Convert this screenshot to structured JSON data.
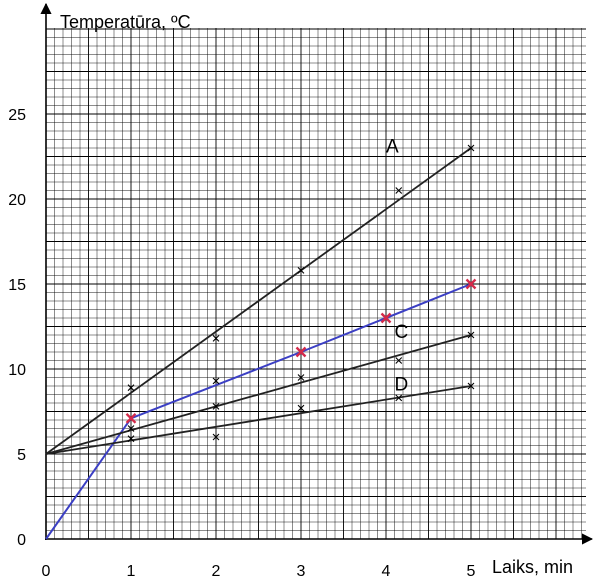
{
  "chart_data": {
    "type": "line",
    "ylabel": "Temperatūra, ºC",
    "xlabel": "Laiks, min",
    "xlim": [
      0,
      5
    ],
    "ylim": [
      0,
      30
    ],
    "x_ticks": [
      "0",
      "1",
      "2",
      "3",
      "4",
      "5"
    ],
    "y_ticks": [
      "0",
      "5",
      "10",
      "15",
      "20",
      "25"
    ],
    "grid": true,
    "series": [
      {
        "name": "A",
        "color": "#222222",
        "line": [
          [
            0,
            5
          ],
          [
            5,
            23
          ]
        ],
        "points": [
          [
            1,
            8.9
          ],
          [
            2,
            11.8
          ],
          [
            3,
            15.8
          ],
          [
            4.15,
            20.5
          ],
          [
            5,
            23
          ]
        ]
      },
      {
        "name": "",
        "color": "#3b3fc4",
        "line": [
          [
            0,
            0
          ],
          [
            1,
            7.1
          ],
          [
            3,
            11
          ],
          [
            5,
            15
          ]
        ],
        "points": [
          [
            1,
            7.1
          ],
          [
            3,
            11
          ],
          [
            4,
            13
          ],
          [
            5,
            15
          ]
        ]
      },
      {
        "name": "C",
        "color": "#222222",
        "line": [
          [
            0,
            5
          ],
          [
            5,
            12
          ]
        ],
        "points": [
          [
            1,
            6.5
          ],
          [
            2,
            7.8
          ],
          [
            2,
            9.3
          ],
          [
            3,
            9.5
          ],
          [
            4.15,
            10.5
          ],
          [
            5,
            12
          ]
        ]
      },
      {
        "name": "D",
        "color": "#222222",
        "line": [
          [
            0,
            5
          ],
          [
            5,
            9
          ]
        ],
        "points": [
          [
            1,
            5.9
          ],
          [
            2,
            6
          ],
          [
            3,
            7.7
          ],
          [
            4.15,
            8.3
          ],
          [
            5,
            9
          ]
        ]
      }
    ]
  }
}
